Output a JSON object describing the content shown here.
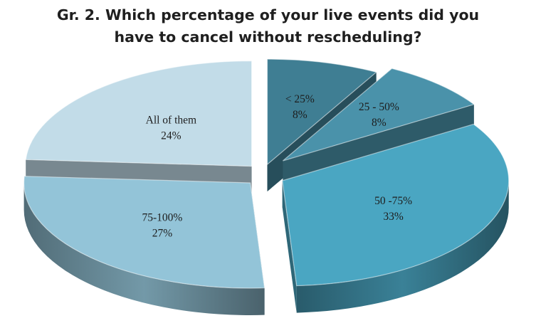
{
  "title_lines": [
    "Gr. 2. Which percentage of your live events did you",
    "have to cancel without rescheduling?"
  ],
  "chart_data": {
    "type": "pie",
    "title": "Gr. 2. Which percentage of your live events did you have to cancel without rescheduling?",
    "exploded": true,
    "three_d": true,
    "slices": [
      {
        "label": "< 25%",
        "value": 8,
        "value_label": "8%",
        "color": "#3f7e93"
      },
      {
        "label": "25 - 50%",
        "value": 8,
        "value_label": "8%",
        "color": "#4a92aa"
      },
      {
        "label": "50 -75%",
        "value": 33,
        "value_label": "33%",
        "color": "#4aa6c2"
      },
      {
        "label": "75-100%",
        "value": 27,
        "value_label": "27%",
        "color": "#93c4d8"
      },
      {
        "label": "All of them",
        "value": 24,
        "value_label": "24%",
        "color": "#c2dce8"
      }
    ]
  }
}
